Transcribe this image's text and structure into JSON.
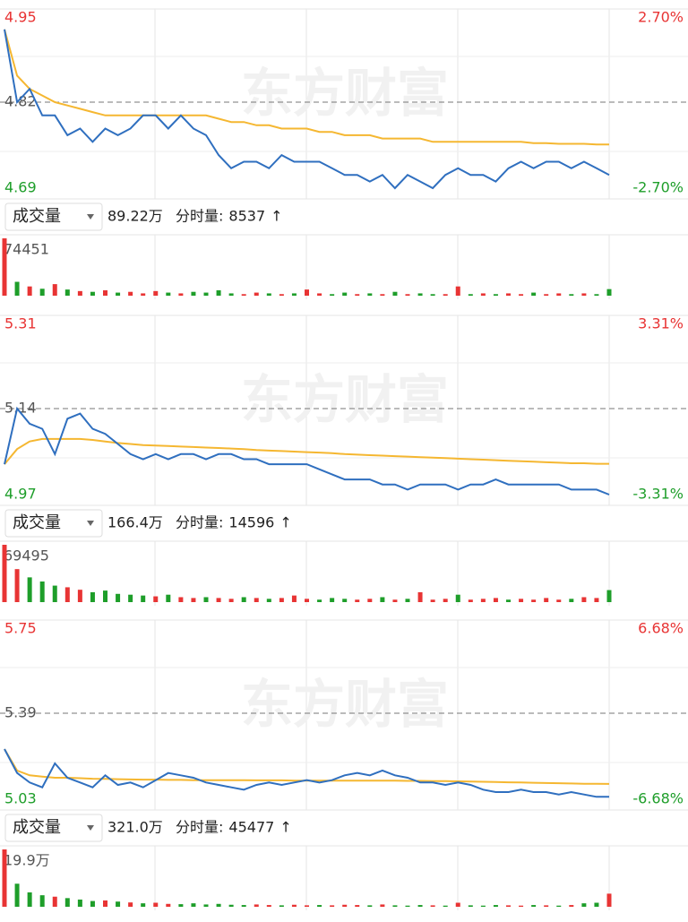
{
  "chart_data": [
    {
      "type": "line",
      "watermark": "东方财富",
      "up_color": "#e83434",
      "down_color": "#1e9e2a",
      "ylim": [
        4.69,
        4.95
      ],
      "yticks": [
        4.69,
        4.82,
        4.95
      ],
      "y2lim": [
        -2.7,
        2.7
      ],
      "y2ticks": [
        {
          "value": -2.7,
          "label": "-2.70%"
        },
        {
          "value": 2.7,
          "label": "2.70%"
        }
      ],
      "series": [
        {
          "color": "#2f6fbf",
          "values": [
            4.93,
            4.82,
            4.84,
            4.8,
            4.8,
            4.77,
            4.78,
            4.76,
            4.78,
            4.77,
            4.78,
            4.8,
            4.8,
            4.78,
            4.8,
            4.78,
            4.77,
            4.74,
            4.72,
            4.73,
            4.73,
            4.72,
            4.74,
            4.73,
            4.73,
            4.73,
            4.72,
            4.71,
            4.71,
            4.7,
            4.71,
            4.69,
            4.71,
            4.7,
            4.69,
            4.71,
            4.72,
            4.71,
            4.71,
            4.7,
            4.72,
            4.73,
            4.72,
            4.73,
            4.73,
            4.72,
            4.73,
            4.72,
            4.71
          ]
        },
        {
          "color": "#f5b731",
          "values": [
            4.93,
            4.86,
            4.84,
            4.83,
            4.82,
            4.815,
            4.81,
            4.805,
            4.8,
            4.8,
            4.8,
            4.8,
            4.8,
            4.8,
            4.8,
            4.8,
            4.8,
            4.795,
            4.79,
            4.79,
            4.785,
            4.785,
            4.78,
            4.78,
            4.78,
            4.775,
            4.775,
            4.77,
            4.77,
            4.77,
            4.765,
            4.765,
            4.765,
            4.765,
            4.76,
            4.76,
            4.76,
            4.76,
            4.76,
            4.76,
            4.76,
            4.76,
            4.758,
            4.758,
            4.757,
            4.757,
            4.757,
            4.756,
            4.756
          ]
        }
      ],
      "header": {
        "button": "成交量",
        "total": "89.22万",
        "tick_label": "分时量:",
        "tick_volume": 8537,
        "arrow": "↑"
      },
      "volume": {
        "ylim": [
          0,
          74451
        ],
        "yticks": [
          74451
        ],
        "values": [
          74451,
          18000,
          12000,
          9000,
          15000,
          8000,
          6000,
          5000,
          7000,
          4000,
          5000,
          3000,
          6000,
          4000,
          3000,
          5000,
          4000,
          7000,
          3000,
          2000,
          4000,
          3000,
          2000,
          3000,
          8000,
          3000,
          2000,
          4000,
          2000,
          3000,
          2000,
          5000,
          2000,
          3000,
          2000,
          2000,
          12000,
          2000,
          3000,
          2000,
          3000,
          2000,
          4000,
          2000,
          3000,
          2000,
          3000,
          2000,
          8537
        ]
      }
    },
    {
      "type": "line",
      "watermark": "东方财富",
      "up_color": "#e83434",
      "down_color": "#1e9e2a",
      "ylim": [
        4.97,
        5.31
      ],
      "yticks": [
        4.97,
        5.14,
        5.31
      ],
      "y2lim": [
        -3.31,
        3.31
      ],
      "y2ticks": [
        {
          "value": -3.31,
          "label": "-3.31%"
        },
        {
          "value": 3.31,
          "label": "3.31%"
        }
      ],
      "series": [
        {
          "color": "#2f6fbf",
          "values": [
            5.03,
            5.14,
            5.11,
            5.1,
            5.05,
            5.12,
            5.13,
            5.1,
            5.09,
            5.07,
            5.05,
            5.04,
            5.05,
            5.04,
            5.05,
            5.05,
            5.04,
            5.05,
            5.05,
            5.04,
            5.04,
            5.03,
            5.03,
            5.03,
            5.03,
            5.02,
            5.01,
            5.0,
            5.0,
            5.0,
            4.99,
            4.99,
            4.98,
            4.99,
            4.99,
            4.99,
            4.98,
            4.99,
            4.99,
            5.0,
            4.99,
            4.99,
            4.99,
            4.99,
            4.99,
            4.98,
            4.98,
            4.98,
            4.97
          ]
        },
        {
          "color": "#f5b731",
          "values": [
            5.03,
            5.06,
            5.075,
            5.08,
            5.08,
            5.08,
            5.08,
            5.078,
            5.075,
            5.072,
            5.07,
            5.068,
            5.067,
            5.066,
            5.065,
            5.064,
            5.063,
            5.062,
            5.061,
            5.06,
            5.058,
            5.057,
            5.056,
            5.055,
            5.054,
            5.053,
            5.052,
            5.05,
            5.049,
            5.048,
            5.047,
            5.046,
            5.045,
            5.044,
            5.043,
            5.042,
            5.041,
            5.04,
            5.039,
            5.038,
            5.037,
            5.036,
            5.035,
            5.034,
            5.033,
            5.032,
            5.032,
            5.031,
            5.031
          ]
        }
      ],
      "header": {
        "button": "成交量",
        "total": "166.4万",
        "tick_label": "分时量:",
        "tick_volume": 14596,
        "arrow": "↑"
      },
      "volume": {
        "ylim": [
          0,
          69495
        ],
        "yticks": [
          69495
        ],
        "values": [
          69495,
          40000,
          30000,
          25000,
          20000,
          18000,
          15000,
          12000,
          14000,
          10000,
          9000,
          8000,
          7000,
          9000,
          6000,
          5000,
          6000,
          5000,
          4000,
          6000,
          5000,
          4000,
          5000,
          8000,
          4000,
          3000,
          5000,
          4000,
          3000,
          4000,
          6000,
          3000,
          4000,
          12000,
          3000,
          4000,
          9000,
          3000,
          4000,
          5000,
          3000,
          4000,
          3000,
          5000,
          3000,
          4000,
          6000,
          5000,
          14596
        ]
      }
    },
    {
      "type": "line",
      "watermark": "东方财富",
      "up_color": "#e83434",
      "down_color": "#1e9e2a",
      "ylim": [
        5.03,
        5.75
      ],
      "yticks": [
        5.03,
        5.39,
        5.75
      ],
      "y2lim": [
        -6.68,
        6.68
      ],
      "y2ticks": [
        {
          "value": -6.68,
          "label": "-6.68%"
        },
        {
          "value": 6.68,
          "label": "6.68%"
        }
      ],
      "series": [
        {
          "color": "#2f6fbf",
          "values": [
            5.24,
            5.14,
            5.1,
            5.08,
            5.18,
            5.12,
            5.1,
            5.08,
            5.13,
            5.09,
            5.1,
            5.08,
            5.11,
            5.14,
            5.13,
            5.12,
            5.1,
            5.09,
            5.08,
            5.07,
            5.09,
            5.1,
            5.09,
            5.1,
            5.11,
            5.1,
            5.11,
            5.13,
            5.14,
            5.13,
            5.15,
            5.13,
            5.12,
            5.1,
            5.1,
            5.09,
            5.1,
            5.09,
            5.07,
            5.06,
            5.06,
            5.07,
            5.06,
            5.06,
            5.05,
            5.06,
            5.05,
            5.04,
            5.04
          ]
        },
        {
          "color": "#f5b731",
          "values": [
            5.24,
            5.15,
            5.13,
            5.125,
            5.12,
            5.12,
            5.118,
            5.116,
            5.115,
            5.114,
            5.113,
            5.112,
            5.112,
            5.111,
            5.111,
            5.11,
            5.11,
            5.11,
            5.11,
            5.11,
            5.109,
            5.109,
            5.109,
            5.108,
            5.108,
            5.108,
            5.108,
            5.108,
            5.108,
            5.108,
            5.108,
            5.108,
            5.107,
            5.107,
            5.106,
            5.106,
            5.105,
            5.104,
            5.103,
            5.102,
            5.101,
            5.1,
            5.099,
            5.098,
            5.097,
            5.096,
            5.095,
            5.095,
            5.094
          ]
        }
      ],
      "header": {
        "button": "成交量",
        "total": "321.0万",
        "tick_label": "分时量:",
        "tick_volume": 45477,
        "arrow": "↑"
      },
      "volume": {
        "ylim": [
          0,
          199000
        ],
        "yticks": [
          {
            "value": 199000,
            "label": "19.9万"
          }
        ],
        "values": [
          199000,
          80000,
          50000,
          40000,
          35000,
          30000,
          25000,
          20000,
          22000,
          18000,
          15000,
          12000,
          14000,
          10000,
          9000,
          12000,
          8000,
          10000,
          7000,
          6000,
          8000,
          6000,
          5000,
          7000,
          5000,
          6000,
          5000,
          7000,
          6000,
          5000,
          8000,
          5000,
          4000,
          6000,
          5000,
          4000,
          14000,
          5000,
          4000,
          6000,
          5000,
          4000,
          6000,
          5000,
          4000,
          6000,
          12000,
          14000,
          45477
        ]
      }
    }
  ]
}
